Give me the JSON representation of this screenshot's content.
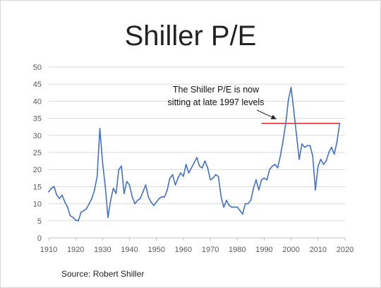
{
  "slide": {
    "title": "Shiller P/E",
    "source": "Source: Robert Shiller"
  },
  "colors": {
    "series": "#4472c4",
    "reference_line": "#d9343a",
    "gridline": "#d9d9d9",
    "axis": "#bfbfbf",
    "arrow": "#222222"
  },
  "chart_data": {
    "type": "line",
    "title": "Shiller P/E",
    "xlabel": "",
    "ylabel": "",
    "xlim": [
      1910,
      2020
    ],
    "ylim": [
      0,
      50
    ],
    "grid": true,
    "legend": "none",
    "x_ticks": [
      "1910",
      "1920",
      "1930",
      "1940",
      "1950",
      "1960",
      "1970",
      "1980",
      "1990",
      "2000",
      "2010",
      "2020"
    ],
    "y_ticks": [
      "0",
      "5",
      "10",
      "15",
      "20",
      "25",
      "30",
      "35",
      "40",
      "45",
      "50"
    ],
    "series": [
      {
        "x": [
          1910,
          1911,
          1912,
          1913,
          1914,
          1915,
          1916,
          1917,
          1918,
          1919,
          1920,
          1921,
          1922,
          1923,
          1924,
          1925,
          1926,
          1927,
          1928,
          1929,
          1930,
          1931,
          1932,
          1933,
          1934,
          1935,
          1936,
          1937,
          1938,
          1939,
          1940,
          1941,
          1942,
          1943,
          1944,
          1945,
          1946,
          1947,
          1948,
          1949,
          1950,
          1951,
          1952,
          1953,
          1954,
          1955,
          1956,
          1957,
          1958,
          1959,
          1960,
          1961,
          1962,
          1963,
          1964,
          1965,
          1966,
          1967,
          1968,
          1969,
          1970,
          1971,
          1972,
          1973,
          1974,
          1975,
          1976,
          1977,
          1978,
          1979,
          1980,
          1981,
          1982,
          1983,
          1984,
          1985,
          1986,
          1987,
          1988,
          1989,
          1990,
          1991,
          1992,
          1993,
          1994,
          1995,
          1996,
          1997,
          1998,
          1999,
          2000,
          2001,
          2002,
          2003,
          2004,
          2005,
          2006,
          2007,
          2008,
          2009,
          2010,
          2011,
          2012,
          2013,
          2014,
          2015,
          2016,
          2017,
          2018
        ],
        "values": [
          13.5,
          14.5,
          15.0,
          12.5,
          11.5,
          12.5,
          10.5,
          9.0,
          6.5,
          6.0,
          5.2,
          5.0,
          7.5,
          8.0,
          8.5,
          10.0,
          11.5,
          14.0,
          18.0,
          32.0,
          22.0,
          15.0,
          6.0,
          11.0,
          14.5,
          13.0,
          20.0,
          21.0,
          13.0,
          16.5,
          15.5,
          12.0,
          10.0,
          11.0,
          11.5,
          13.5,
          15.5,
          12.0,
          10.5,
          9.5,
          10.5,
          11.5,
          12.0,
          12.0,
          14.0,
          17.5,
          18.5,
          15.5,
          17.5,
          19.0,
          18.0,
          21.5,
          19.0,
          20.5,
          22.0,
          23.5,
          21.0,
          20.5,
          22.5,
          20.5,
          17.0,
          17.5,
          18.5,
          18.0,
          12.0,
          9.0,
          11.0,
          9.5,
          9.0,
          9.0,
          9.0,
          8.0,
          7.0,
          10.0,
          10.0,
          11.0,
          14.5,
          17.0,
          14.0,
          17.0,
          17.5,
          17.0,
          20.0,
          21.0,
          21.5,
          20.5,
          24.0,
          28.5,
          33.5,
          40.5,
          44.0,
          37.0,
          30.0,
          23.0,
          27.5,
          26.5,
          27.0,
          27.0,
          24.0,
          14.0,
          21.0,
          23.0,
          21.5,
          22.5,
          25.0,
          26.5,
          24.5,
          28.0,
          33.5
        ]
      }
    ],
    "reference_line": {
      "y": 33.5,
      "x_from": 1989,
      "x_to": 2018
    },
    "annotations": [
      {
        "lines": [
          "The Shiller P/E is now",
          "sitting at late 1997 levels"
        ],
        "arrow_to": {
          "x": 1994.5,
          "y": 34.8
        }
      }
    ]
  }
}
